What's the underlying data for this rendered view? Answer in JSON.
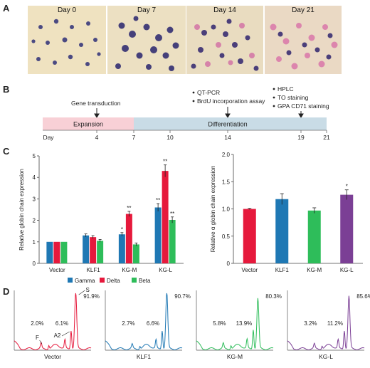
{
  "panels": {
    "A": "A",
    "B": "B",
    "C": "C",
    "D": "D"
  },
  "micrographs": [
    {
      "label": "Day 0"
    },
    {
      "label": "Day 7"
    },
    {
      "label": "Day 14"
    },
    {
      "label": "Day 21"
    }
  ],
  "timeline": {
    "day_label": "Day",
    "ticks": [
      "4",
      "7",
      "10",
      "14",
      "19",
      "21"
    ],
    "expansion_label": "Expansion",
    "differentiation_label": "Differentiation",
    "gene_transduction": "Gene transduction",
    "day14_items": [
      "QT-PCR",
      "BrdU incorporation assay"
    ],
    "day19_items": [
      "HPLC",
      "TO staining",
      "GPA CD71 staining"
    ],
    "colors": {
      "expansion": "#f8d0d6",
      "differentiation": "#c9dce6"
    }
  },
  "chart_data": [
    {
      "type": "bar",
      "ylabel": "Relative globin chain expression",
      "ylim": [
        0,
        5
      ],
      "yticks": [
        "0",
        "1",
        "2",
        "3",
        "4",
        "5"
      ],
      "categories": [
        "Vector",
        "KLF1",
        "KG-M",
        "KG-L"
      ],
      "series": [
        {
          "name": "Gamma",
          "color": "#1f78b4",
          "values": [
            1.0,
            1.3,
            1.35,
            2.6
          ],
          "errors": [
            0.0,
            0.07,
            0.08,
            0.18
          ],
          "marks": [
            "",
            "",
            "*",
            "**"
          ]
        },
        {
          "name": "Delta",
          "color": "#e6193c",
          "values": [
            1.0,
            1.22,
            2.3,
            4.3
          ],
          "errors": [
            0.0,
            0.07,
            0.12,
            0.28
          ],
          "marks": [
            "",
            "",
            "**",
            "**"
          ]
        },
        {
          "name": "Beta",
          "color": "#2ebd5a",
          "values": [
            1.0,
            1.05,
            0.88,
            2.02
          ],
          "errors": [
            0.0,
            0.06,
            0.07,
            0.14
          ],
          "marks": [
            "",
            "",
            "",
            "**"
          ]
        }
      ],
      "legend_position": "bottom"
    },
    {
      "type": "bar",
      "ylabel": "Relative α globin chain expression",
      "ylim": [
        0,
        2.0
      ],
      "yticks": [
        "0",
        "0.5",
        "1.0",
        "1.5",
        "2.0"
      ],
      "categories": [
        "Vector",
        "KLF1",
        "KG-M",
        "KG-L"
      ],
      "values": [
        1.0,
        1.18,
        0.97,
        1.26
      ],
      "errors": [
        0.01,
        0.1,
        0.05,
        0.09
      ],
      "colors": [
        "#e6193c",
        "#1f78b4",
        "#2ebd5a",
        "#7b3f95"
      ],
      "marks": [
        "",
        "",
        "",
        "*"
      ]
    },
    {
      "type": "line",
      "subplots": [
        {
          "label": "Vector",
          "color": "#e6193c",
          "annotations": [
            "2.0%",
            "6.1%",
            "91.9%"
          ],
          "peak_labels": [
            "F",
            "A2",
            "S"
          ]
        },
        {
          "label": "KLF1",
          "color": "#1f78b4",
          "annotations": [
            "2.7%",
            "6.6%",
            "90.7%"
          ]
        },
        {
          "label": "KG-M",
          "color": "#2ebd5a",
          "annotations": [
            "5.8%",
            "13.9%",
            "80.3%"
          ]
        },
        {
          "label": "KG-L",
          "color": "#7b3f95",
          "annotations": [
            "3.2%",
            "11.2%",
            "85.6%"
          ]
        }
      ]
    }
  ]
}
